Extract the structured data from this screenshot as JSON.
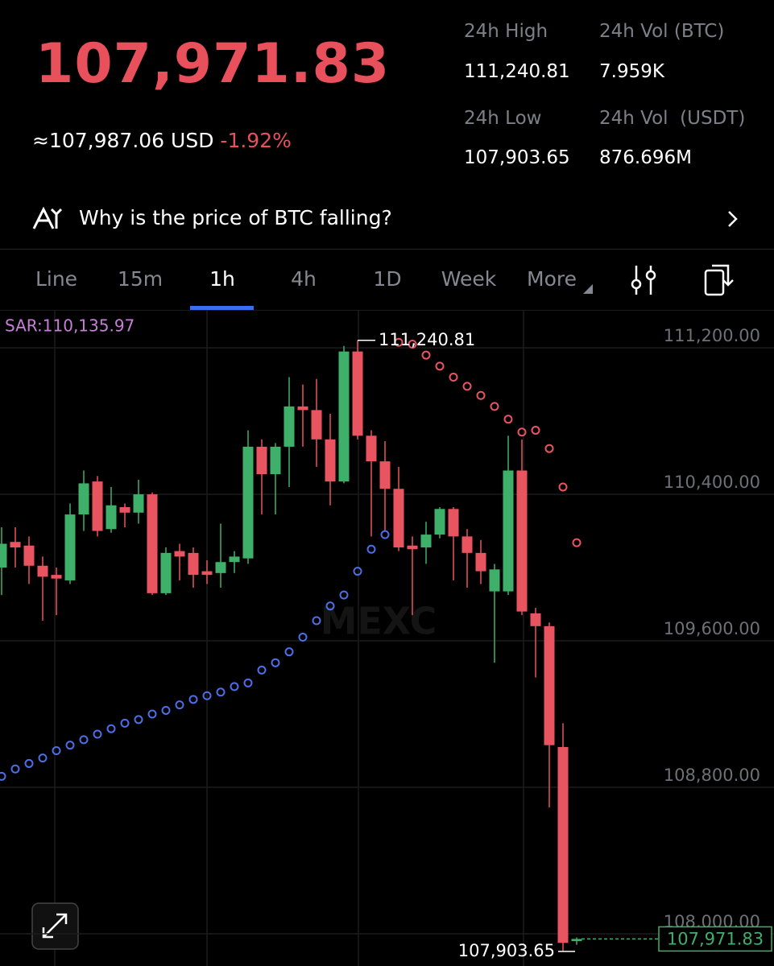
{
  "header": {
    "price": "107,971.83",
    "approx": "≈107,987.06",
    "currency": "USD",
    "change": "-1.92%",
    "stats": [
      {
        "label": "24h High",
        "value": "111,240.81"
      },
      {
        "label": "24h Vol (BTC)",
        "value": "7.959K"
      },
      {
        "label": "24h Low",
        "value": "107,903.65"
      },
      {
        "label": "24h Vol  (USDT)",
        "value": "876.696M"
      }
    ]
  },
  "banner": {
    "text": "Why is the price of BTC falling?"
  },
  "tabs": [
    "Line",
    "15m",
    "1h",
    "4h",
    "1D",
    "Week",
    "More"
  ],
  "active_tab": "1h",
  "chart_data": {
    "type": "candlestick",
    "watermark": "MEXC",
    "up_color": "#3fb06a",
    "down_color": "#e8545f",
    "ylim": [
      107824,
      111407
    ],
    "yticks": [
      {
        "value": 111200,
        "label": "111,200.00"
      },
      {
        "value": 110400,
        "label": "110,400.00"
      },
      {
        "value": 109600,
        "label": "109,600.00"
      },
      {
        "value": 108800,
        "label": "108,800.00"
      },
      {
        "value": 108000,
        "label": "108,000.00"
      }
    ],
    "grid": true,
    "candles": {
      "open": [
        110000,
        110140,
        110120,
        110010,
        109960,
        109930,
        110290,
        110470,
        110210,
        110330,
        110300,
        110400,
        109860,
        110090,
        110080,
        109980,
        109970,
        110030,
        110050,
        110660,
        110510,
        110660,
        110880,
        110860,
        110700,
        110470,
        111180,
        110720,
        110580,
        110430,
        110120,
        110110,
        110180,
        110320,
        110170,
        110080,
        109870,
        109870,
        110530,
        109750,
        109680,
        109020,
        107960
      ],
      "high": [
        110220,
        110220,
        110170,
        110060,
        110000,
        110350,
        110530,
        110500,
        110440,
        110350,
        110480,
        110410,
        110110,
        110130,
        110110,
        110040,
        110240,
        110090,
        110750,
        110700,
        110680,
        111040,
        111000,
        111030,
        110840,
        111210,
        111240.81,
        110750,
        110690,
        110550,
        110170,
        110250,
        110330,
        110330,
        110210,
        110150,
        110020,
        110720,
        110700,
        109780,
        109700,
        109150,
        107980
      ],
      "low": [
        109850,
        110000,
        109910,
        109710,
        109740,
        109910,
        110200,
        110170,
        110190,
        110220,
        110240,
        109850,
        109850,
        109930,
        109890,
        109910,
        109890,
        109970,
        110020,
        110290,
        110290,
        110440,
        110660,
        110550,
        110340,
        110460,
        110700,
        110170,
        110200,
        110090,
        109740,
        110020,
        110160,
        109930,
        109890,
        109910,
        109480,
        109850,
        109740,
        109400,
        108690,
        107903.65,
        107940
      ],
      "close": [
        110130,
        110110,
        110010,
        109950,
        109940,
        110290,
        110460,
        110200,
        110340,
        110300,
        110400,
        109860,
        110080,
        110060,
        109960,
        109960,
        110030,
        110060,
        110660,
        110510,
        110660,
        110880,
        110860,
        110700,
        110470,
        111180,
        110720,
        110580,
        110430,
        110110,
        110100,
        110180,
        110320,
        110170,
        110080,
        109980,
        109990,
        110530,
        109760,
        109680,
        109030,
        107950,
        107971.83
      ]
    },
    "high_label": "111,240.81",
    "low_label": "107,903.65",
    "last_label": "107,971.83",
    "sar": {
      "label": "SAR:110,135.97",
      "up_color": "#4d6ee8",
      "down_color": "#e8545f",
      "values": [
        108860,
        108900,
        108930,
        108960,
        109000,
        109030,
        109060,
        109090,
        109120,
        109150,
        109170,
        109200,
        109220,
        109250,
        109280,
        109300,
        109320,
        109350,
        109370,
        109440,
        109480,
        109540,
        109620,
        109710,
        109790,
        109850,
        109980,
        110100,
        110180,
        111230,
        111220,
        111160,
        111100,
        111040,
        110990,
        110940,
        110880,
        110810,
        110740,
        110750,
        110650,
        110440,
        110135.97
      ]
    }
  }
}
